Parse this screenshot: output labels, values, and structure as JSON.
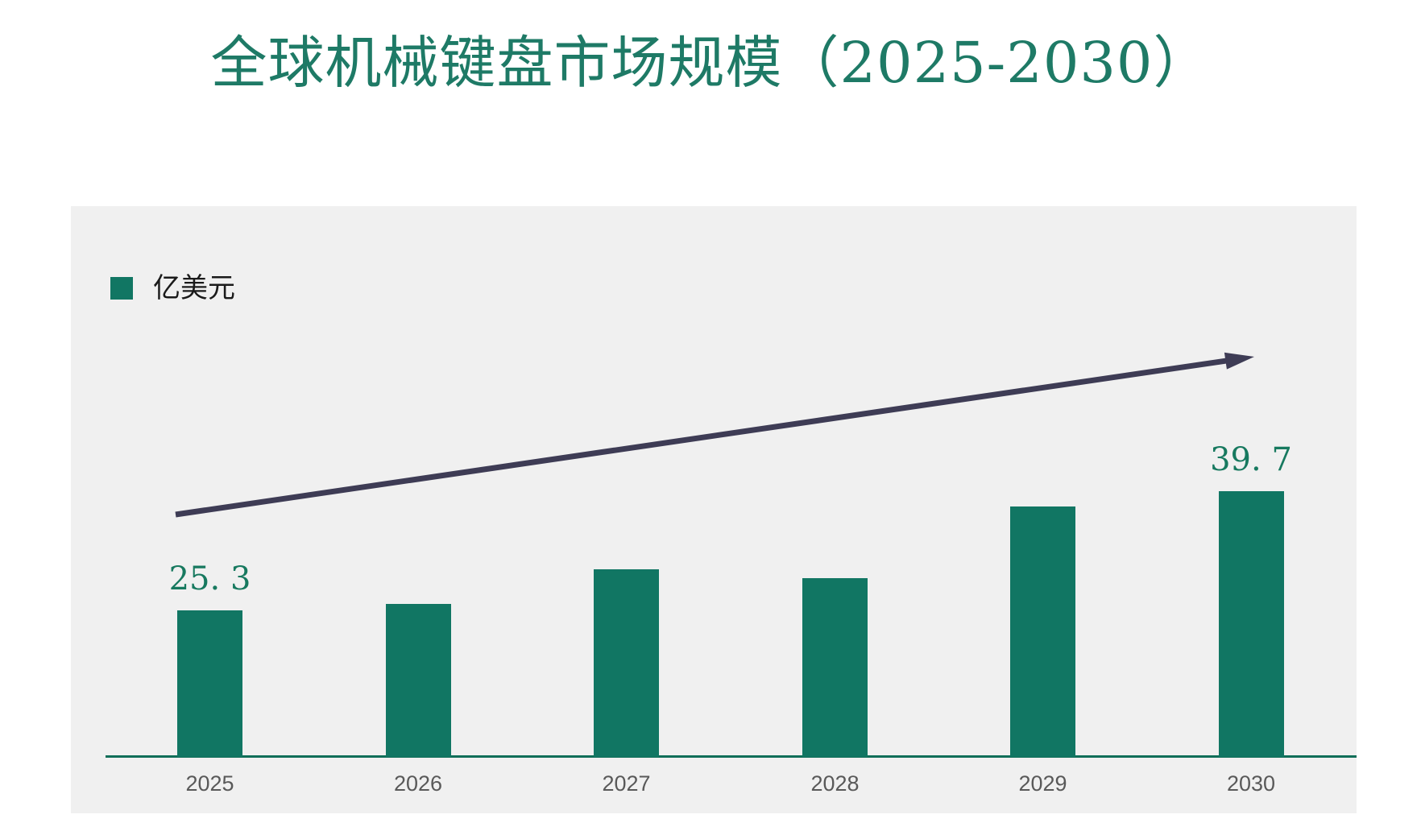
{
  "colors": {
    "page_background": "#FFFFFF",
    "panel_background": "#F0F0F0",
    "title_green": "#1E7A66",
    "bar_green": "#117663",
    "axis_green": "#0F6E58",
    "tick_gray": "#595959",
    "value_label_green": "#17795F",
    "legend_text": "#1A1A1A",
    "arrow_dark": "#3E3C55"
  },
  "chart_data": {
    "type": "bar",
    "title": "全球机械键盘市场规模（2025-2030）",
    "categories": [
      "2025",
      "2026",
      "2027",
      "2028",
      "2029",
      "2030"
    ],
    "series": [
      {
        "name": "亿美元",
        "values": [
          25.3,
          26.1,
          30.3,
          29.2,
          37.9,
          39.7
        ]
      }
    ],
    "data_labels": [
      "25. 3",
      "",
      "",
      "",
      "",
      "39. 7"
    ],
    "legend": [
      {
        "label": "亿美元",
        "color": "#117663"
      }
    ],
    "legend_position": "top-left",
    "grid": false,
    "y_axis_visible": false,
    "ylim": [
      7.6,
      45
    ],
    "xlabel": "",
    "ylabel": "",
    "annotations": [
      {
        "type": "trend-arrow",
        "direction": "up-right",
        "color": "#3E3C55"
      }
    ]
  }
}
